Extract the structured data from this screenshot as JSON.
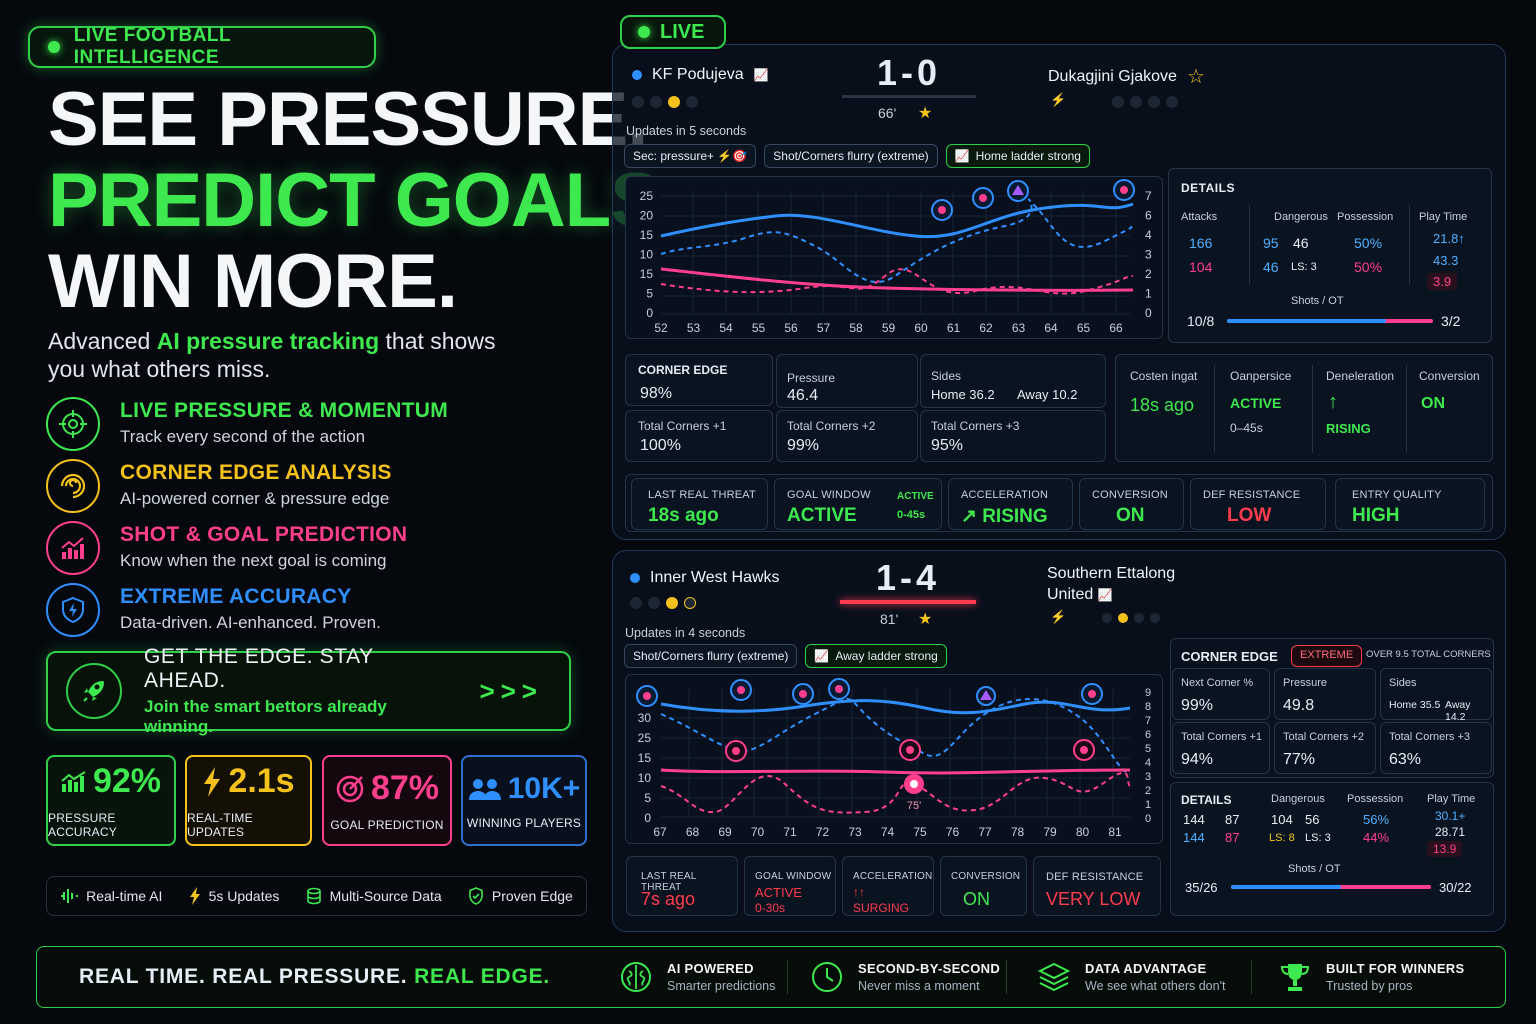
{
  "hero": {
    "badge": "LIVE FOOTBALL INTELLIGENCE",
    "line1": "SEE PRESSURE.",
    "line2": "PREDICT GOALS.",
    "line3": "WIN MORE.",
    "subtitle_pre": "Advanced ",
    "subtitle_hl": "AI pressure tracking",
    "subtitle_post": " that shows you what others miss."
  },
  "features": [
    {
      "title": "LIVE PRESSURE & MOMENTUM",
      "desc": "Track every second of the action",
      "icon": "target-icon",
      "color": "#3ee84f"
    },
    {
      "title": "CORNER EDGE ANALYSIS",
      "desc": "AI-powered corner & pressure edge",
      "icon": "spiral-icon",
      "color": "#f5c21b"
    },
    {
      "title": "SHOT & GOAL PREDICTION",
      "desc": "Know when the next goal is coming",
      "icon": "chart-up-icon",
      "color": "#ff3f8e"
    },
    {
      "title": "EXTREME ACCURACY",
      "desc": "Data-driven. AI-enhanced. Proven.",
      "icon": "shield-bolt-icon",
      "color": "#2f8fff"
    }
  ],
  "cta": {
    "title": "GET THE EDGE. STAY AHEAD.",
    "subtitle": "Join the smart bettors already winning.",
    "arrows": ">>>"
  },
  "stats": [
    {
      "value": "92%",
      "label": "PRESSURE ACCURACY",
      "color": "#3ee84f"
    },
    {
      "value": "2.1s",
      "label": "REAL-TIME UPDATES",
      "color": "#f5c21b"
    },
    {
      "value": "87%",
      "label": "GOAL PREDICTION",
      "color": "#ff3f8e"
    },
    {
      "value": "10K+",
      "label": "WINNING PLAYERS",
      "color": "#2f8fff"
    }
  ],
  "tags": [
    "Real-time AI",
    "5s Updates",
    "Multi-Source Data",
    "Proven Edge"
  ],
  "live_label": "LIVE",
  "match1": {
    "home": "KF Podujeva",
    "away": "Dukagjini Gjakove",
    "score": "1-0",
    "minute": "66'",
    "updates": "Updates in 5 seconds",
    "chips": [
      "Sec: pressure+ ⚡🎯",
      "Shot/Corners flurry (extreme)",
      "Home ladder strong"
    ],
    "chart_x": [
      "52",
      "53",
      "54",
      "55",
      "56",
      "57",
      "58",
      "59",
      "60",
      "61",
      "62",
      "63",
      "64",
      "65",
      "66"
    ],
    "chart_yl": [
      "25",
      "20",
      "15",
      "10",
      "15",
      "5",
      "0"
    ],
    "chart_yr": [
      "7",
      "6",
      "4",
      "3",
      "2",
      "1",
      "0"
    ],
    "details": {
      "title": "DETAILS",
      "headers": [
        "Attacks",
        "Dangerous",
        "Possession",
        "Play Time"
      ],
      "attacks": [
        "166",
        "104"
      ],
      "dangerous": [
        "95",
        "46",
        "46",
        "LS: 3"
      ],
      "possession": [
        "50%",
        "50%"
      ],
      "playtime": [
        "21.8↑",
        "43.3",
        "3.9"
      ],
      "shots_label": "Shots / OT",
      "shots_home": "10/8",
      "shots_away": "3/2",
      "shots_ratio": 0.77
    },
    "corner": {
      "title": "CORNER EDGE",
      "edge": "98%",
      "pressure_label": "Pressure",
      "pressure": "46.4",
      "sides_label": "Sides",
      "sides_home": "Home 36.2",
      "sides_away": "Away 10.2",
      "tc1_label": "Total Corners +1",
      "tc1": "100%",
      "tc2_label": "Total Corners +2",
      "tc2": "99%",
      "tc3_label": "Total Corners +3",
      "tc3": "95%"
    },
    "side": {
      "c1_label": "Costen ingat",
      "c1_val": "18s ago",
      "c2_label": "Oanpersice",
      "c2_val": "ACTIVE",
      "c2_sub": "0–45s",
      "c3_label": "Deneleration",
      "c3_val": "RISING",
      "c4_label": "Conversion",
      "c4_val": "ON"
    },
    "metrics": [
      {
        "label": "LAST REAL THREAT",
        "value": "18s ago",
        "color": "#3ee84f"
      },
      {
        "label": "GOAL WINDOW",
        "value": "ACTIVE",
        "extra_top": "ACTIVE",
        "extra_bot": "0-45s",
        "color": "#3ee84f"
      },
      {
        "label": "ACCELERATION",
        "value": "RISING",
        "color": "#3ee84f"
      },
      {
        "label": "CONVERSION",
        "value": "ON",
        "color": "#3ee84f"
      },
      {
        "label": "DEF RESISTANCE",
        "value": "LOW",
        "color": "#ff3b4e"
      },
      {
        "label": "ENTRY QUALITY",
        "value": "HIGH",
        "color": "#3ee84f"
      }
    ]
  },
  "match2": {
    "home": "Inner West Hawks",
    "away_line1": "Southern Ettalong",
    "away_line2": "United",
    "score": "1-4",
    "minute": "81'",
    "updates": "Updates in 4 seconds",
    "chips": [
      "Shot/Corners flurry (extreme)",
      "Away ladder strong"
    ],
    "chart_x": [
      "67",
      "68",
      "69",
      "70",
      "71",
      "72",
      "73",
      "74",
      "75",
      "76",
      "77",
      "78",
      "79",
      "80",
      "81"
    ],
    "chart_yl": [
      "30",
      "25",
      "15",
      "10",
      "5",
      "0"
    ],
    "chart_yr": [
      "9",
      "8",
      "7",
      "6",
      "5",
      "4",
      "3",
      "2",
      "1",
      "0"
    ],
    "marker_label": "75'",
    "corner": {
      "title": "CORNER EDGE",
      "badge": "EXTREME",
      "badge2": "OVER 9.5 TOTAL CORNERS",
      "next_label": "Next Corner %",
      "next": "99%",
      "pressure_label": "Pressure",
      "pressure": "49.8",
      "sides_label": "Sides",
      "sides_home": "Home 35.5",
      "sides_away": "Away 14.2",
      "tc1_label": "Total Corners +1",
      "tc1": "94%",
      "tc2_label": "Total Corners +2",
      "tc2": "77%",
      "tc3_label": "Total Corners +3",
      "tc3": "63%"
    },
    "details": {
      "title": "DETAILS",
      "dangerous_label": "Dangerous",
      "possession_label": "Possession",
      "playtime_label": "Play Time",
      "r1": [
        "144",
        "87"
      ],
      "r2": [
        "144",
        "87"
      ],
      "dangerous": [
        "104",
        "56",
        "LS: 8",
        "LS: 3"
      ],
      "possession": [
        "56%",
        "44%"
      ],
      "playtime": [
        "30.1+",
        "28.71",
        "13.9"
      ],
      "shots_label": "Shots / OT",
      "shots_home": "35/26",
      "shots_away": "30/22",
      "shots_ratio": 0.55
    },
    "metrics": [
      {
        "label": "LAST REAL THREAT",
        "value": "7s ago",
        "color": "#ff3b4e"
      },
      {
        "label": "GOAL WINDOW",
        "value": "ACTIVE",
        "sub": "0-30s",
        "color": "#ff3b4e"
      },
      {
        "label": "ACCELERATION",
        "value": "SURGING",
        "pre": "↑↑",
        "color": "#ff3b4e"
      },
      {
        "label": "CONVERSION",
        "value": "ON",
        "color": "#3ee84f"
      },
      {
        "label": "DEF RESISTANCE",
        "value": "VERY LOW",
        "color": "#ff3b4e"
      }
    ]
  },
  "footer": {
    "slogan_pre": "REAL TIME. REAL PRESSURE. ",
    "slogan_hl": "REAL EDGE.",
    "items": [
      {
        "title": "AI POWERED",
        "desc": "Smarter predictions",
        "icon": "brain-icon"
      },
      {
        "title": "SECOND-BY-SECOND",
        "desc": "Never miss a moment",
        "icon": "clock-icon"
      },
      {
        "title": "DATA ADVANTAGE",
        "desc": "We see what others don't",
        "icon": "layers-icon"
      },
      {
        "title": "BUILT FOR WINNERS",
        "desc": "Trusted by pros",
        "icon": "trophy-icon"
      }
    ]
  }
}
